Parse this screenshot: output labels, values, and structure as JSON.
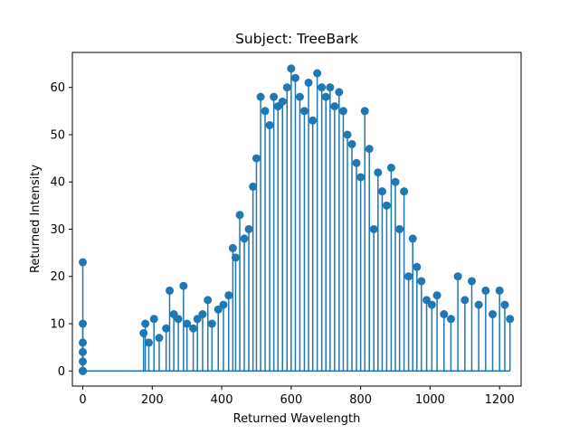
{
  "chart_data": {
    "type": "scatter",
    "title": "Subject: TreeBark",
    "xlabel": "Returned Wavelength",
    "ylabel": "Returned Intensity",
    "xlim": [
      -30,
      1262
    ],
    "ylim": [
      -3.2,
      67.4
    ],
    "xticks": [
      0,
      200,
      400,
      600,
      800,
      1000,
      1200
    ],
    "yticks": [
      0,
      10,
      20,
      30,
      40,
      50,
      60
    ],
    "style": "stem (vertical lines from 0 with round markers)",
    "series": [
      {
        "color": "#1f77b4",
        "x": [
          0,
          0,
          0,
          0,
          0,
          0,
          0,
          0,
          175,
          180,
          190,
          205,
          220,
          240,
          250,
          262,
          275,
          290,
          300,
          318,
          330,
          345,
          360,
          372,
          390,
          405,
          420,
          432,
          440,
          452,
          465,
          478,
          490,
          500,
          512,
          525,
          538,
          550,
          562,
          575,
          588,
          600,
          612,
          625,
          638,
          650,
          662,
          675,
          688,
          700,
          712,
          725,
          738,
          750,
          762,
          775,
          788,
          800,
          812,
          825,
          838,
          850,
          862,
          875,
          888,
          900,
          912,
          925,
          938,
          950,
          962,
          975,
          990,
          1005,
          1020,
          1040,
          1060,
          1080,
          1100,
          1120,
          1140,
          1160,
          1180,
          1200,
          1215,
          1230
        ],
        "y": [
          0,
          2,
          4,
          6,
          10,
          23,
          0,
          0,
          8,
          10,
          6,
          11,
          7,
          9,
          17,
          12,
          11,
          18,
          10,
          9,
          11,
          12,
          15,
          10,
          13,
          14,
          16,
          26,
          24,
          33,
          28,
          30,
          39,
          45,
          58,
          55,
          52,
          58,
          56,
          57,
          60,
          64,
          62,
          58,
          55,
          61,
          53,
          63,
          60,
          58,
          60,
          56,
          59,
          55,
          50,
          48,
          44,
          41,
          55,
          47,
          30,
          42,
          38,
          35,
          43,
          40,
          30,
          38,
          20,
          28,
          22,
          19,
          15,
          14,
          16,
          12,
          11,
          20,
          15,
          19,
          14,
          17,
          12,
          17,
          14,
          11
        ]
      }
    ]
  }
}
